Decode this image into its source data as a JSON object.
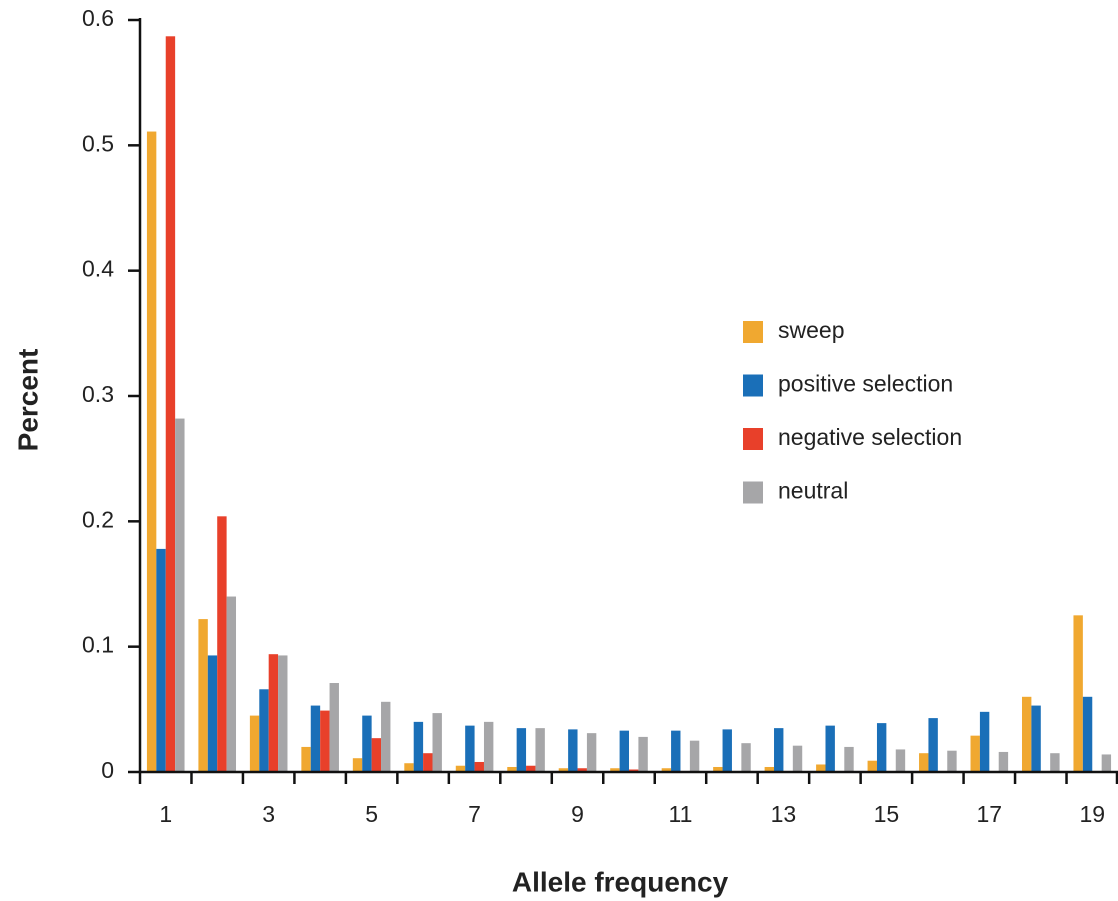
{
  "chart_data": {
    "type": "bar",
    "x_label": "Allele frequency",
    "y_label": "Percent",
    "categories": [
      1,
      null,
      3,
      null,
      5,
      null,
      7,
      null,
      9,
      null,
      11,
      null,
      13,
      null,
      15,
      null,
      17,
      null,
      19
    ],
    "ylim": [
      0,
      0.6
    ],
    "yticks": [
      0,
      0.1,
      0.2,
      0.3,
      0.4,
      0.5,
      0.6
    ],
    "legend": "right",
    "series": [
      {
        "name": "sweep",
        "color": "#f0a830",
        "values": [
          0.511,
          0.122,
          0.045,
          0.02,
          0.011,
          0.007,
          0.005,
          0.004,
          0.003,
          0.003,
          0.003,
          0.004,
          0.004,
          0.006,
          0.009,
          0.015,
          0.029,
          0.06,
          0.125
        ]
      },
      {
        "name": "positive selection",
        "color": "#1a6fb8",
        "values": [
          0.178,
          0.093,
          0.066,
          0.053,
          0.045,
          0.04,
          0.037,
          0.035,
          0.034,
          0.033,
          0.033,
          0.034,
          0.035,
          0.037,
          0.039,
          0.043,
          0.048,
          0.053,
          0.06
        ]
      },
      {
        "name": "negative selection",
        "color": "#e8402a",
        "values": [
          0.587,
          0.204,
          0.094,
          0.049,
          0.027,
          0.015,
          0.008,
          0.005,
          0.003,
          0.002,
          0,
          0,
          0,
          0,
          0,
          0,
          0,
          0,
          0
        ]
      },
      {
        "name": "neutral",
        "color": "#a6a6a8",
        "values": [
          0.282,
          0.14,
          0.093,
          0.071,
          0.056,
          0.047,
          0.04,
          0.035,
          0.031,
          0.028,
          0.025,
          0.023,
          0.021,
          0.02,
          0.018,
          0.017,
          0.016,
          0.015,
          0.014
        ]
      }
    ]
  }
}
